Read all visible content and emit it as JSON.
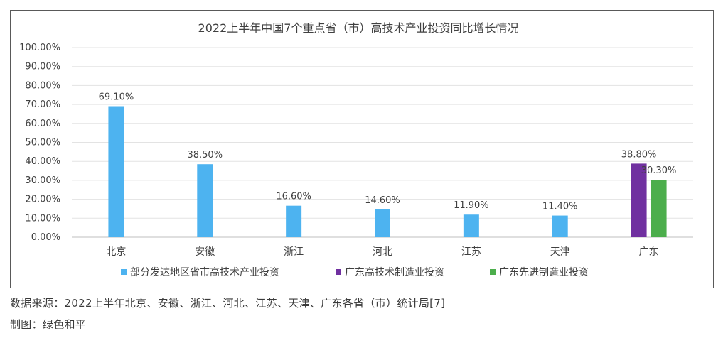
{
  "chart_data": {
    "type": "bar",
    "title": "2022上半年中国7个重点省（市）高技术产业投资同比增长情况",
    "categories": [
      "北京",
      "安徽",
      "浙江",
      "河北",
      "江苏",
      "天津",
      "广东"
    ],
    "ylim": [
      0,
      100
    ],
    "yticks": [
      0,
      10,
      20,
      30,
      40,
      50,
      60,
      70,
      80,
      90,
      100
    ],
    "ytick_labels": [
      "0.00%",
      "10.00%",
      "20.00%",
      "30.00%",
      "40.00%",
      "50.00%",
      "60.00%",
      "70.00%",
      "80.00%",
      "90.00%",
      "100.00%"
    ],
    "grid": true,
    "legend_position": "bottom",
    "series": [
      {
        "name": "部分发达地区省市高技术产业投资",
        "color": "#4db3f0",
        "values": [
          69.1,
          38.5,
          16.6,
          14.6,
          11.9,
          11.4,
          null
        ],
        "labels": [
          "69.10%",
          "38.50%",
          "16.60%",
          "14.60%",
          "11.90%",
          "11.40%",
          ""
        ]
      },
      {
        "name": "广东高技术制造业投资",
        "color": "#7030a0",
        "values": [
          null,
          null,
          null,
          null,
          null,
          null,
          38.8
        ],
        "labels": [
          "",
          "",
          "",
          "",
          "",
          "",
          "38.80%"
        ]
      },
      {
        "name": "广东先进制造业投资",
        "color": "#4cae4c",
        "values": [
          null,
          null,
          null,
          null,
          null,
          null,
          30.3
        ],
        "labels": [
          "",
          "",
          "",
          "",
          "",
          "",
          "30.30%"
        ]
      }
    ]
  },
  "caption": {
    "source": "数据来源：2022上半年北京、安徽、浙江、河北、江苏、天津、广东各省（市）统计局[7]",
    "maker": "制图：绿色和平"
  }
}
